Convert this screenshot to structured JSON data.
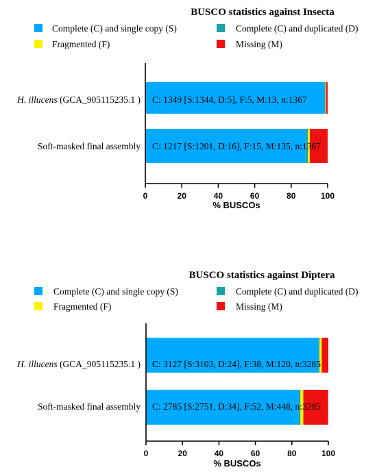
{
  "chart_data": [
    {
      "type": "bar",
      "orientation": "horizontal",
      "stacked": true,
      "title": "BUSCO statistics against Insecta",
      "xlabel": "% BUSCOs",
      "ylabel": "",
      "xlim": [
        0,
        100
      ],
      "xticks": [
        "0",
        "20",
        "40",
        "60",
        "80",
        "100"
      ],
      "legend_position": "top",
      "categories": [
        {
          "italic": "H. illucens",
          "rest": " (GCA_905115235.1 )"
        },
        {
          "italic": "",
          "rest": "Soft-masked final assembly"
        }
      ],
      "series": [
        {
          "name": "Complete (C) and single copy (S)",
          "color": "#00aaff",
          "values": [
            98.3,
            87.9
          ]
        },
        {
          "name": "Complete (C) and duplicated (D)",
          "color": "#1aa3a8",
          "values": [
            0.4,
            1.2
          ]
        },
        {
          "name": "Fragmented (F)",
          "color": "#f5f500",
          "values": [
            0.4,
            1.1
          ]
        },
        {
          "name": "Missing (M)",
          "color": "#ee1111",
          "values": [
            0.9,
            9.8
          ]
        }
      ],
      "bar_labels": [
        "C: 1349 [S:1344, D:5], F:5, M:13, n:1367",
        "C: 1217 [S:1201, D:16], F:15, M:135, n:1367"
      ]
    },
    {
      "type": "bar",
      "orientation": "horizontal",
      "stacked": true,
      "title": "BUSCO statistics against Diptera",
      "xlabel": "% BUSCOs",
      "ylabel": "",
      "xlim": [
        0,
        100
      ],
      "xticks": [
        "0",
        "20",
        "40",
        "60",
        "80",
        "100"
      ],
      "legend_position": "top",
      "categories": [
        {
          "italic": "H. illucens",
          "rest": " (GCA_905115235.1 )"
        },
        {
          "italic": "",
          "rest": "Soft-masked final assembly"
        }
      ],
      "series": [
        {
          "name": "Complete (C) and single copy (S)",
          "color": "#00aaff",
          "values": [
            94.5,
            83.7
          ]
        },
        {
          "name": "Complete (C) and duplicated (D)",
          "color": "#1aa3a8",
          "values": [
            0.7,
            1.0
          ]
        },
        {
          "name": "Fragmented (F)",
          "color": "#f5f500",
          "values": [
            1.2,
            1.6
          ]
        },
        {
          "name": "Missing (M)",
          "color": "#ee1111",
          "values": [
            3.6,
            13.6
          ]
        }
      ],
      "bar_labels": [
        "C: 3127 [S:3103, D:24], F:38, M:120, n:3285",
        "C: 2785 [S:2751, D:34], F:52, M:448, n:3285"
      ]
    }
  ]
}
